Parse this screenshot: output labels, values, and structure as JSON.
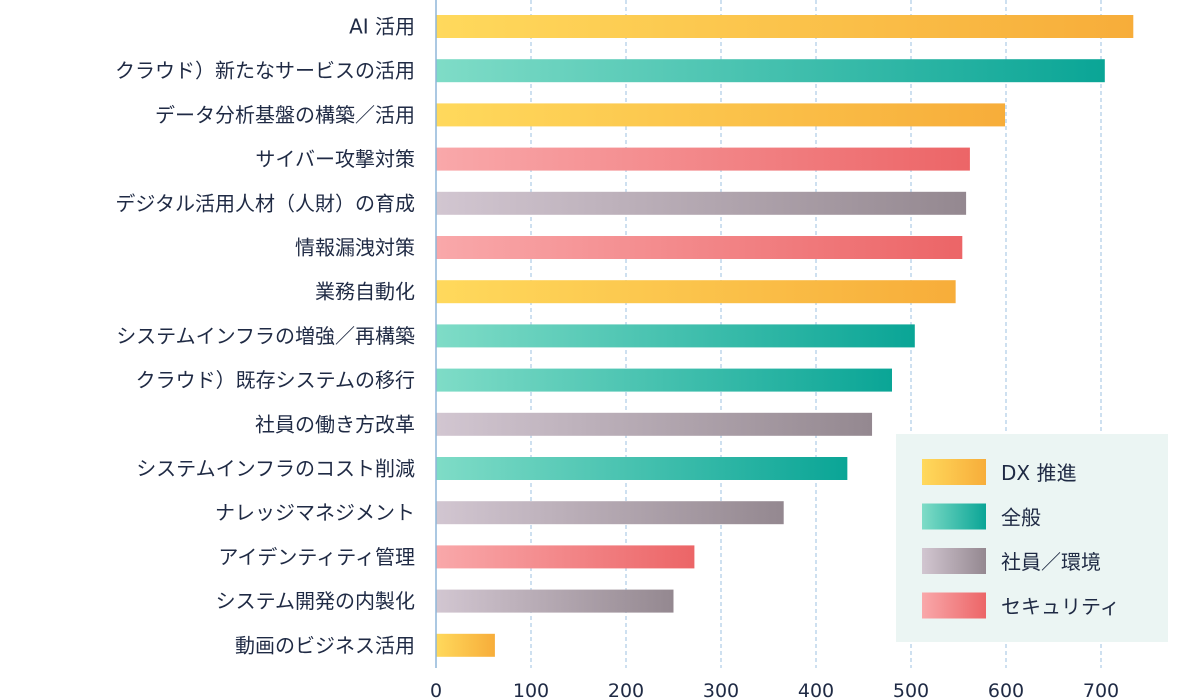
{
  "chart_data": {
    "type": "bar",
    "orientation": "horizontal",
    "title": "",
    "xlabel": "",
    "ylabel": "",
    "xlim": [
      0,
      700
    ],
    "xticks": [
      "0",
      "100",
      "200",
      "300",
      "400",
      "500",
      "600",
      "700"
    ],
    "grid": "vertical dashed",
    "legend_position": "bottom-right",
    "categories": [
      "AI 活用",
      "クラウド）新たなサービスの活用",
      "データ分析基盤の構築／活用",
      "サイバー攻撃対策",
      "デジタル活用人材（人財）の育成",
      "情報漏洩対策",
      "業務自動化",
      "システムインフラの増強／再構築",
      "クラウド）既存システムの移行",
      "社員の働き方改革",
      "システムインフラのコスト削減",
      "ナレッジマネジメント",
      "アイデンティティ管理",
      "システム開発の内製化",
      "動画のビジネス活用"
    ],
    "values": [
      734,
      704,
      599,
      562,
      558,
      554,
      547,
      504,
      480,
      459,
      433,
      366,
      272,
      250,
      62
    ],
    "groups": [
      "dx",
      "general",
      "dx",
      "security",
      "employee",
      "security",
      "dx",
      "general",
      "general",
      "employee",
      "general",
      "employee",
      "security",
      "employee",
      "dx"
    ],
    "legend": [
      {
        "key": "dx",
        "label": "DX 推進",
        "color_start": "#ffd95c",
        "color_end": "#f7ad3a"
      },
      {
        "key": "general",
        "label": "全般",
        "color_start": "#7fdcc7",
        "color_end": "#0aa596"
      },
      {
        "key": "employee",
        "label": "社員／環境",
        "color_start": "#d2c6d1",
        "color_end": "#948890"
      },
      {
        "key": "security",
        "label": "セキュリティ",
        "color_start": "#f9a8aa",
        "color_end": "#ec6567"
      }
    ],
    "colors": {
      "axis": "#8fb5d8",
      "grid": "#9cc0e0",
      "legend_bg": "#ebf5f3",
      "text": "#1f2a44"
    }
  }
}
